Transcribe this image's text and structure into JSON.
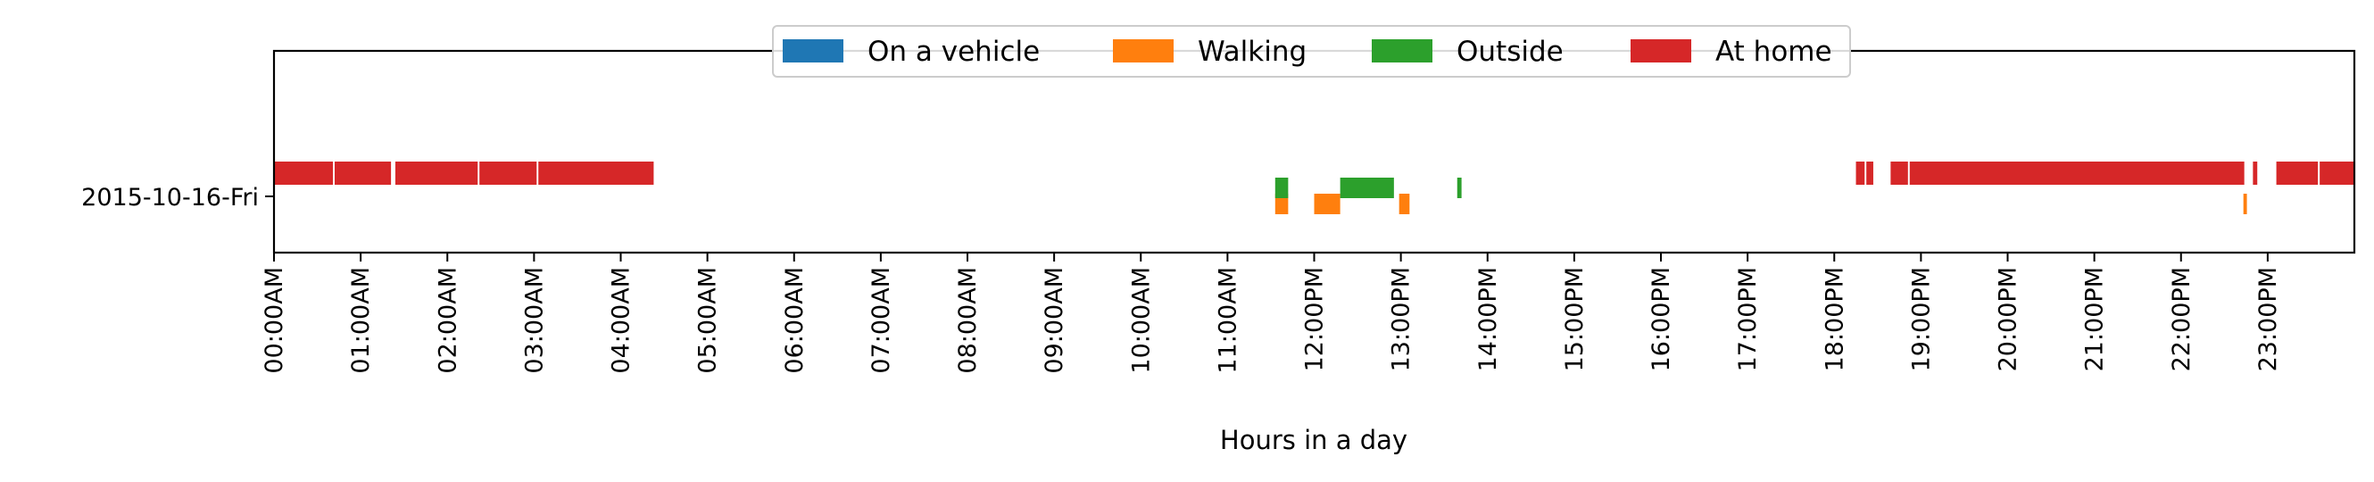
{
  "chart_data": {
    "type": "timeline",
    "title": "",
    "xlabel": "Hours in a day",
    "ylabel": "",
    "xlim": [
      0,
      24
    ],
    "grid": false,
    "legend_placement": "top-center",
    "row_label": "2015-10-16-Fri",
    "x_tick_labels": [
      "00:00AM",
      "01:00AM",
      "02:00AM",
      "03:00AM",
      "04:00AM",
      "05:00AM",
      "06:00AM",
      "07:00AM",
      "08:00AM",
      "09:00AM",
      "10:00AM",
      "11:00AM",
      "12:00PM",
      "13:00PM",
      "14:00PM",
      "15:00PM",
      "16:00PM",
      "17:00PM",
      "18:00PM",
      "19:00PM",
      "20:00PM",
      "21:00PM",
      "22:00PM",
      "23:00PM"
    ],
    "series": [
      {
        "name": "On a vehicle",
        "color": "#1f77b4",
        "intervals": []
      },
      {
        "name": "Walking",
        "color": "#ff7f0e",
        "intervals": [
          [
            11.55,
            11.7
          ],
          [
            12.0,
            12.3
          ],
          [
            12.98,
            13.1
          ],
          [
            22.72,
            22.76
          ]
        ]
      },
      {
        "name": "Outside",
        "color": "#2ca02c",
        "intervals": [
          [
            11.55,
            11.7
          ],
          [
            12.3,
            12.92
          ],
          [
            13.65,
            13.7
          ]
        ]
      },
      {
        "name": "At home",
        "color": "#d62728",
        "intervals": [
          [
            0.0,
            0.68
          ],
          [
            0.7,
            1.35
          ],
          [
            1.4,
            2.35
          ],
          [
            2.37,
            3.03
          ],
          [
            3.05,
            4.38
          ],
          [
            18.25,
            18.35
          ],
          [
            18.37,
            18.45
          ],
          [
            18.65,
            18.85
          ],
          [
            18.87,
            22.73
          ],
          [
            22.83,
            22.88
          ],
          [
            23.1,
            23.58
          ],
          [
            23.6,
            24.0
          ]
        ]
      }
    ]
  }
}
